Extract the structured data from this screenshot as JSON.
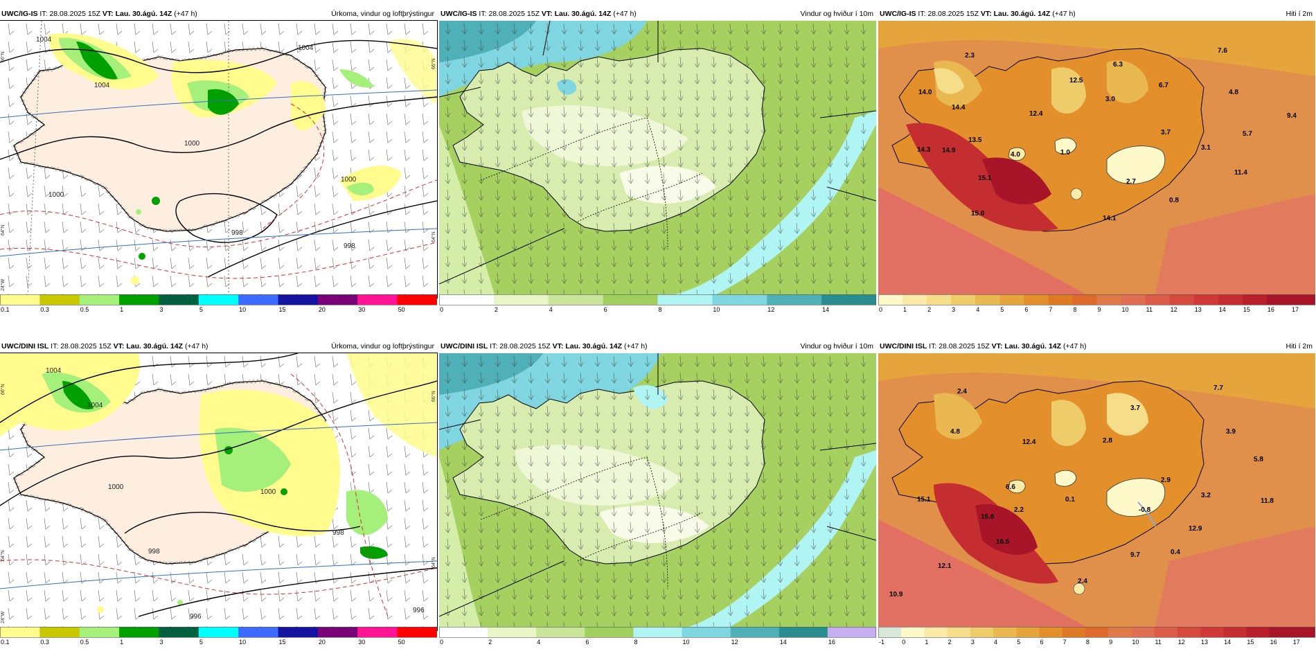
{
  "header": {
    "it_label": "IT:",
    "it_value": "28.08.2025 15Z",
    "vt_label": "VT:",
    "vt_value": "Lau. 30.ágú. 14Z",
    "lead": "(+47 h)"
  },
  "models": {
    "top": "UWC/IG-IS",
    "bottom": "UWC/DINI ISL"
  },
  "titles": {
    "precip": "Úrkoma, vindur og loftþrýstingur",
    "wind": "Vindur og hviður í 10m",
    "temp": "Hiti í 2m"
  },
  "colorbars": {
    "precip": {
      "labels": [
        "0.1",
        "0.3",
        "0.5",
        "1",
        "3",
        "5",
        "10",
        "15",
        "20",
        "30",
        "50"
      ],
      "colors": [
        "#fffb8c",
        "#c8c800",
        "#a4f07a",
        "#00a000",
        "#006040",
        "#00ffff",
        "#3d6bff",
        "#1414a0",
        "#7a007a",
        "#ff1493",
        "#ff0000"
      ]
    },
    "wind_ig": {
      "labels": [
        "0",
        "2",
        "4",
        "6",
        "8",
        "10",
        "12",
        "14"
      ],
      "colors": [
        "#ffffff",
        "#eaf6c8",
        "#c9e59a",
        "#a0cf5e",
        "#b0f4f4",
        "#80d6e0",
        "#50b0b8",
        "#2a8d8f"
      ]
    },
    "wind_dini": {
      "labels": [
        "0",
        "2",
        "4",
        "6",
        "8",
        "10",
        "12",
        "14",
        "16"
      ],
      "colors": [
        "#ffffff",
        "#eaf6c8",
        "#c9e59a",
        "#a0cf5e",
        "#b0f4f4",
        "#80d6e0",
        "#50b0b8",
        "#2a8d8f",
        "#c6aef0"
      ]
    },
    "temp_ig": {
      "labels": [
        "0",
        "1",
        "2",
        "3",
        "4",
        "5",
        "6",
        "7",
        "8",
        "9",
        "10",
        "11",
        "12",
        "13",
        "14",
        "15",
        "16",
        "17"
      ],
      "colors": [
        "#fff8c8",
        "#fbeaa8",
        "#f5dd8a",
        "#efcc6a",
        "#e9b850",
        "#e6a43c",
        "#e28f2c",
        "#df7a24",
        "#dd6a2a",
        "#de7a4a",
        "#e06e52",
        "#dc5c4a",
        "#d64a3e",
        "#cf3a36",
        "#c52e30",
        "#b8202c",
        "#a81428",
        "#a81428"
      ]
    },
    "temp_dini": {
      "labels": [
        "-1",
        "0",
        "1",
        "2",
        "3",
        "4",
        "5",
        "6",
        "7",
        "8",
        "9",
        "10",
        "11",
        "12",
        "13",
        "14",
        "15",
        "16",
        "17"
      ],
      "colors": [
        "#d8e8d8",
        "#fff8c8",
        "#fbeaa8",
        "#f5dd8a",
        "#efcc6a",
        "#e9b850",
        "#e6a43c",
        "#e28f2c",
        "#df7a24",
        "#dd6a2a",
        "#de7a4a",
        "#e06e52",
        "#dc5c4a",
        "#d64a3e",
        "#cf3a36",
        "#c52e30",
        "#b8202c",
        "#a81428",
        "#a81428"
      ]
    }
  },
  "precip_maps": {
    "top": {
      "isobars": [
        "1004",
        "1004",
        "1004",
        "1000",
        "1000",
        "1000",
        "998",
        "998"
      ],
      "grid_labels": [
        "66°N",
        "66°N",
        "64°N",
        "64°N",
        "24°W"
      ]
    },
    "bottom": {
      "isobars": [
        "1004",
        "1004",
        "1000",
        "1000",
        "998",
        "998",
        "996",
        "996"
      ],
      "grid_labels": [
        "66°N",
        "66°N",
        "64°N",
        "64°N",
        "24°W"
      ]
    }
  },
  "temp_maps": {
    "top": [
      "2.3",
      "6.3",
      "7.6",
      "12.5",
      "6.7",
      "14.0",
      "3.0",
      "4.8",
      "14.4",
      "12.4",
      "9.4",
      "3.7",
      "5.7",
      "13.5",
      "3.1",
      "14.3",
      "14.9",
      "4.0",
      "1.0",
      "11.4",
      "15.1",
      "2.7",
      "0.8",
      "15.0",
      "14.1"
    ],
    "bottom": [
      "2.4",
      "7.7",
      "3.7",
      "4.8",
      "12.4",
      "2.8",
      "3.9",
      "5.8",
      "2.9",
      "6.6",
      "3.2",
      "15.1",
      "2.2",
      "0.1",
      "11.8",
      "-0.8",
      "15.6",
      "12.9",
      "16.5",
      "9.7",
      "0.4",
      "12.1",
      "2.4",
      "10.9"
    ]
  }
}
